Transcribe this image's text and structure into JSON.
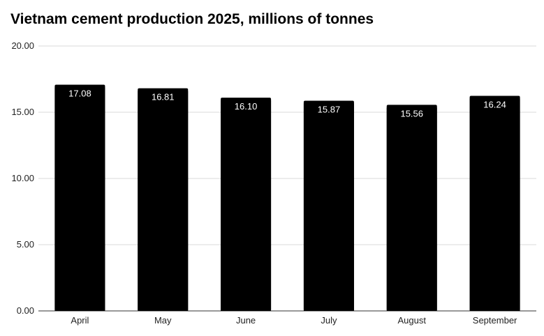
{
  "chart_data": {
    "type": "bar",
    "title": "Vietnam cement production 2025, millions of tonnes",
    "categories": [
      "April",
      "May",
      "June",
      "July",
      "August",
      "September"
    ],
    "values": [
      17.08,
      16.81,
      16.1,
      15.87,
      15.56,
      16.24
    ],
    "data_labels": [
      "17.08",
      "16.81",
      "16.10",
      "15.87",
      "15.56",
      "16.24"
    ],
    "yticks": [
      "0.00",
      "5.00",
      "10.00",
      "15.00",
      "20.00"
    ],
    "ylim": [
      0,
      20
    ],
    "grid": true,
    "bar_color": "#000000",
    "label_color": "#ffffff",
    "grid_color": "#d9d9d9"
  }
}
